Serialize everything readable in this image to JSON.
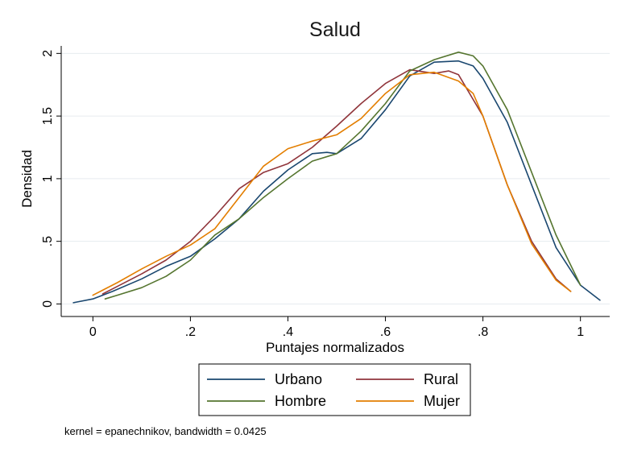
{
  "chart_data": {
    "type": "line",
    "title": "Salud",
    "xlabel": "Puntajes normalizados",
    "ylabel": "Densidad",
    "xlim": [
      -0.065,
      1.06
    ],
    "ylim": [
      -0.1,
      2.06
    ],
    "xticks": [
      0,
      0.2,
      0.4,
      0.6,
      0.8,
      1
    ],
    "xtick_labels": [
      "0",
      ".2",
      ".4",
      ".6",
      ".8",
      "1"
    ],
    "yticks": [
      0,
      0.5,
      1,
      1.5,
      2
    ],
    "ytick_labels": [
      "0",
      ".5",
      "1",
      "1.5",
      "2"
    ],
    "grid": true,
    "legend_position": "bottom",
    "note": "kernel = epanechnikov, bandwidth = 0.0425",
    "series": [
      {
        "name": "Urbano",
        "color": "#1a476f",
        "x": [
          -0.04,
          0.0,
          0.04,
          0.1,
          0.15,
          0.2,
          0.25,
          0.3,
          0.35,
          0.4,
          0.45,
          0.48,
          0.5,
          0.55,
          0.6,
          0.65,
          0.7,
          0.75,
          0.78,
          0.8,
          0.85,
          0.9,
          0.95,
          1.0,
          1.04
        ],
        "y": [
          0.01,
          0.04,
          0.1,
          0.2,
          0.3,
          0.38,
          0.52,
          0.68,
          0.9,
          1.07,
          1.2,
          1.21,
          1.2,
          1.32,
          1.55,
          1.82,
          1.93,
          1.94,
          1.9,
          1.8,
          1.45,
          0.95,
          0.45,
          0.15,
          0.03
        ]
      },
      {
        "name": "Rural",
        "color": "#90353b",
        "x": [
          0.02,
          0.05,
          0.1,
          0.15,
          0.2,
          0.25,
          0.3,
          0.35,
          0.4,
          0.45,
          0.5,
          0.55,
          0.6,
          0.65,
          0.7,
          0.73,
          0.75,
          0.8,
          0.85,
          0.9,
          0.95,
          0.98
        ],
        "y": [
          0.08,
          0.14,
          0.24,
          0.35,
          0.5,
          0.7,
          0.92,
          1.05,
          1.12,
          1.25,
          1.42,
          1.6,
          1.76,
          1.87,
          1.84,
          1.86,
          1.83,
          1.5,
          0.95,
          0.5,
          0.2,
          0.1
        ]
      },
      {
        "name": "Hombre",
        "color": "#55752f",
        "x": [
          0.025,
          0.05,
          0.1,
          0.15,
          0.2,
          0.25,
          0.3,
          0.35,
          0.4,
          0.45,
          0.5,
          0.55,
          0.6,
          0.65,
          0.7,
          0.75,
          0.78,
          0.8,
          0.85,
          0.9,
          0.95,
          1.0
        ],
        "y": [
          0.04,
          0.07,
          0.13,
          0.22,
          0.35,
          0.55,
          0.68,
          0.85,
          1.0,
          1.14,
          1.2,
          1.38,
          1.6,
          1.86,
          1.95,
          2.01,
          1.98,
          1.9,
          1.55,
          1.05,
          0.55,
          0.15
        ]
      },
      {
        "name": "Mujer",
        "color": "#e37e00",
        "x": [
          0.0,
          0.05,
          0.1,
          0.15,
          0.2,
          0.25,
          0.3,
          0.35,
          0.4,
          0.45,
          0.5,
          0.55,
          0.6,
          0.65,
          0.7,
          0.75,
          0.78,
          0.8,
          0.85,
          0.9,
          0.95,
          0.98
        ],
        "y": [
          0.07,
          0.17,
          0.28,
          0.38,
          0.47,
          0.6,
          0.85,
          1.1,
          1.24,
          1.3,
          1.35,
          1.48,
          1.68,
          1.83,
          1.85,
          1.78,
          1.68,
          1.5,
          0.95,
          0.48,
          0.19,
          0.1
        ]
      }
    ]
  }
}
